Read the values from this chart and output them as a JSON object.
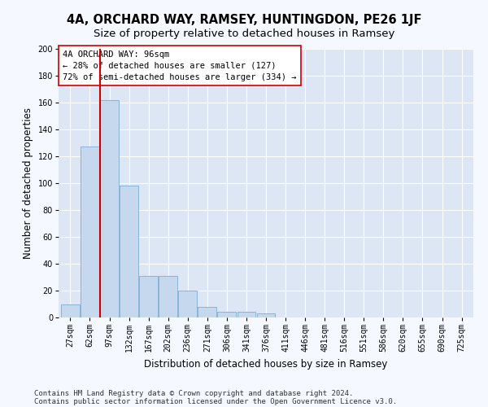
{
  "title": "4A, ORCHARD WAY, RAMSEY, HUNTINGDON, PE26 1JF",
  "subtitle": "Size of property relative to detached houses in Ramsey",
  "xlabel": "Distribution of detached houses by size in Ramsey",
  "ylabel": "Number of detached properties",
  "categories": [
    "27sqm",
    "62sqm",
    "97sqm",
    "132sqm",
    "167sqm",
    "202sqm",
    "236sqm",
    "271sqm",
    "306sqm",
    "341sqm",
    "376sqm",
    "411sqm",
    "446sqm",
    "481sqm",
    "516sqm",
    "551sqm",
    "586sqm",
    "620sqm",
    "655sqm",
    "690sqm",
    "725sqm"
  ],
  "bar_values": [
    10,
    127,
    162,
    98,
    31,
    31,
    20,
    8,
    4,
    4,
    3,
    0,
    0,
    0,
    0,
    0,
    0,
    0,
    0,
    0,
    0
  ],
  "bar_color": "#c5d8ee",
  "bar_edge_color": "#7aadd4",
  "vline_x": 1.5,
  "vline_color": "#cc0000",
  "annotation_line1": "4A ORCHARD WAY: 96sqm",
  "annotation_line2": "← 28% of detached houses are smaller (127)",
  "annotation_line3": "72% of semi-detached houses are larger (334) →",
  "annotation_box_color": "#ffffff",
  "annotation_box_edge": "#cc0000",
  "ylim": [
    0,
    200
  ],
  "yticks": [
    0,
    20,
    40,
    60,
    80,
    100,
    120,
    140,
    160,
    180,
    200
  ],
  "plot_bg_color": "#dce6f5",
  "fig_bg_color": "#f5f8ff",
  "footer1": "Contains HM Land Registry data © Crown copyright and database right 2024.",
  "footer2": "Contains public sector information licensed under the Open Government Licence v3.0.",
  "title_fontsize": 10.5,
  "subtitle_fontsize": 9.5,
  "xlabel_fontsize": 8.5,
  "ylabel_fontsize": 8.5,
  "tick_fontsize": 7,
  "annotation_fontsize": 7.5,
  "footer_fontsize": 6.5
}
